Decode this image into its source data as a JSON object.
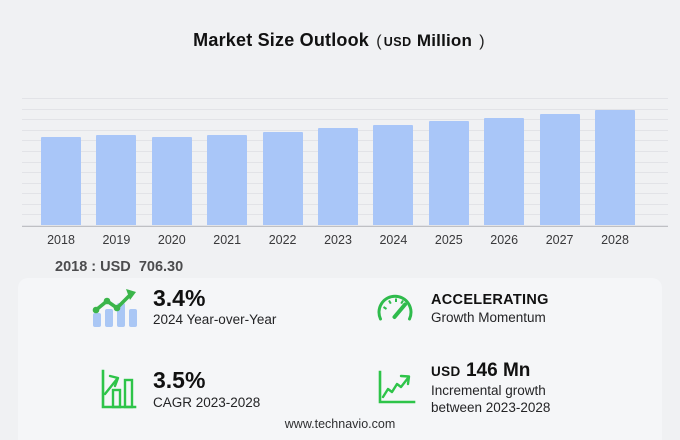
{
  "title": {
    "main": "Market Size Outlook",
    "paren_open": "(",
    "unit_small": "USD",
    "unit": "Million",
    "paren_close": ")"
  },
  "chart_data": {
    "type": "bar",
    "title": "Market Size Outlook (USD Million)",
    "categories": [
      "2018",
      "2019",
      "2020",
      "2021",
      "2022",
      "2023",
      "2024",
      "2025",
      "2026",
      "2027",
      "2028"
    ],
    "values": [
      706.3,
      726,
      707,
      724,
      748,
      778,
      804,
      832,
      860,
      891,
      924
    ],
    "xlabel": "",
    "ylabel": "",
    "ylim": [
      0,
      1020
    ],
    "grid": "horizontal",
    "legend": "none",
    "bar_color": "#a9c6f8"
  },
  "base_year_note": "2018 : USD  706.30",
  "stats": [
    {
      "icon": "bars-trend-up-icon",
      "value": "3.4%",
      "label": "2024 Year-over-Year"
    },
    {
      "icon": "gauge-icon",
      "value": "ACCELERATING",
      "label": "Growth Momentum"
    },
    {
      "icon": "bar-chart-growth-icon",
      "value": "3.5%",
      "label": "CAGR 2023-2028"
    },
    {
      "icon": "line-chart-increase-icon",
      "value_prefix": "USD",
      "value": "146 Mn",
      "label_line1": "Incremental growth",
      "label_line2": "between 2023-2028"
    }
  ],
  "footer": {
    "url": "www.technavio.com"
  },
  "colors": {
    "background": "#f0f1f3",
    "panel": "#f5f6f8",
    "bar_blue": "#a9c6f8",
    "icon_bar_blue": "#aac7f5",
    "accent_green": "#2fbb4c",
    "gridline": "#e2e3e7",
    "axis": "#bfc0c4"
  }
}
